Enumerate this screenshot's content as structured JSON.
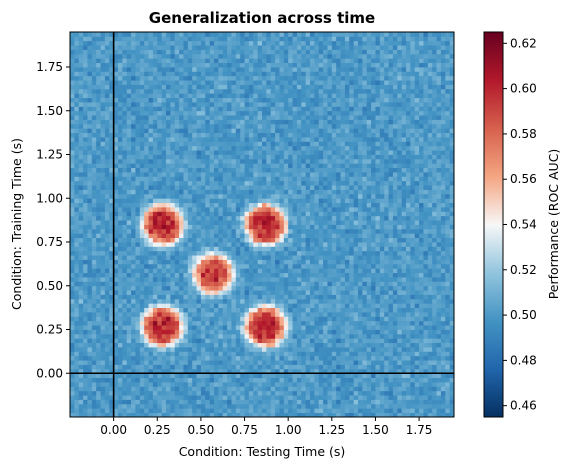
{
  "chart_data": {
    "type": "heatmap",
    "title": "Generalization across time",
    "xlabel": "Condition: Testing Time (s)",
    "ylabel": "Condition: Training Time (s)",
    "xlim": [
      -0.25,
      1.95
    ],
    "ylim": [
      -0.25,
      1.95
    ],
    "x_ticks": [
      "0.00",
      "0.25",
      "0.50",
      "0.75",
      "1.00",
      "1.25",
      "1.50",
      "1.75"
    ],
    "y_ticks": [
      "0.00",
      "0.25",
      "0.50",
      "0.75",
      "1.00",
      "1.25",
      "1.50",
      "1.75"
    ],
    "grid": false,
    "colormap": "RdBu_r",
    "baseline_value": 0.5,
    "reference_lines": {
      "x": 0.0,
      "y": 0.0,
      "color": "#000000"
    },
    "peaks": [
      {
        "train_time": 0.85,
        "test_time": 0.28,
        "value": 0.6
      },
      {
        "train_time": 0.85,
        "test_time": 0.87,
        "value": 0.6
      },
      {
        "train_time": 0.57,
        "test_time": 0.57,
        "value": 0.59
      },
      {
        "train_time": 0.27,
        "test_time": 0.28,
        "value": 0.6
      },
      {
        "train_time": 0.27,
        "test_time": 0.87,
        "value": 0.6
      }
    ],
    "colorbar": {
      "label": "Performance (ROC AUC)",
      "range": [
        0.455,
        0.625
      ],
      "ticks": [
        "0.46",
        "0.48",
        "0.50",
        "0.52",
        "0.54",
        "0.56",
        "0.58",
        "0.60",
        "0.62"
      ]
    }
  }
}
